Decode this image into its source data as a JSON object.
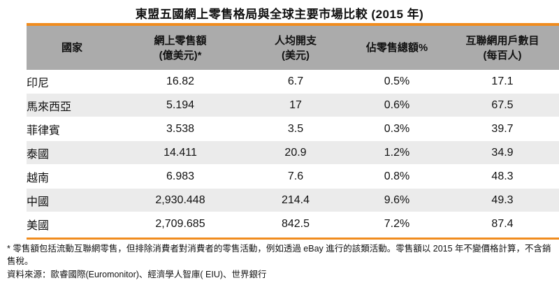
{
  "title": "東盟五國網上零售格局與全球主要市場比較 (2015 年)",
  "headers": {
    "country": "國家",
    "sales_line1": "網上零售額",
    "sales_line2": "(億美元)*",
    "percap_line1": "人均開支",
    "percap_line2": "(美元)",
    "share": "佔零售總額%",
    "users_line1": "互聯網用戶數目",
    "users_line2": "(每百人)"
  },
  "rows": [
    {
      "country": "印尼",
      "sales": "16.82",
      "per_capita": "6.7",
      "share": "0.5%",
      "users": "17.1"
    },
    {
      "country": "馬來西亞",
      "sales": "5.194",
      "per_capita": "17",
      "share": "0.6%",
      "users": "67.5"
    },
    {
      "country": "菲律賓",
      "sales": "3.538",
      "per_capita": "3.5",
      "share": "0.3%",
      "users": "39.7"
    },
    {
      "country": "泰國",
      "sales": "14.411",
      "per_capita": "20.9",
      "share": "1.2%",
      "users": "34.9"
    },
    {
      "country": "越南",
      "sales": "6.983",
      "per_capita": "7.6",
      "share": "0.8%",
      "users": "48.3"
    },
    {
      "country": "中國",
      "sales": "2,930.448",
      "per_capita": "214.4",
      "share": "9.6%",
      "users": "49.3"
    },
    {
      "country": "美國",
      "sales": "2,709.685",
      "per_capita": "842.5",
      "share": "7.2%",
      "users": "87.4"
    }
  ],
  "footnote": "* 零售額包括流動互聯網零售，但排除消費者對消費者的零售活動，例如透過 eBay 進行的該類活動。零售額以 2015 年不變價格計算，不含銷售稅。",
  "source": "資料來源：歐睿國際(Euromonitor)、經濟學人智庫( EIU)、世界銀行",
  "colors": {
    "accent_bar": "#f08c1e",
    "header_bg": "#ababab",
    "zebra_bg": "#ebebeb"
  }
}
